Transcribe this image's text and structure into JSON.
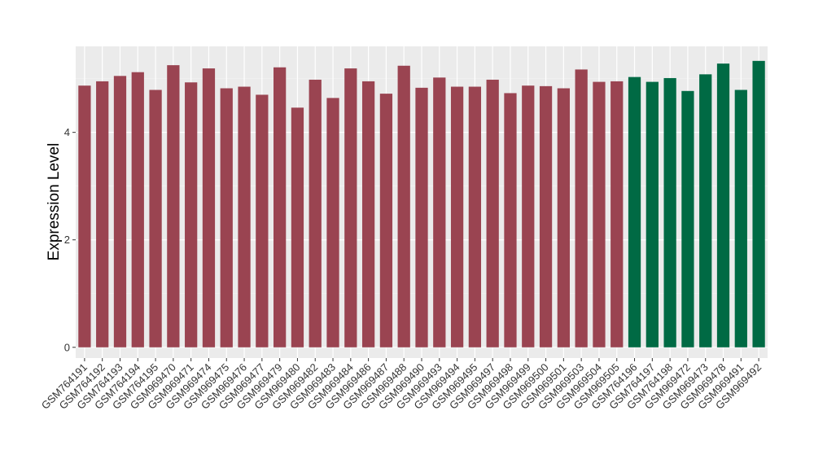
{
  "chart_data": {
    "type": "bar",
    "title": "",
    "xlabel": "",
    "ylabel": "Expression Level",
    "ylim": [
      -0.2,
      5.6
    ],
    "yticks": [
      0,
      2,
      4
    ],
    "grid": true,
    "legend": "none",
    "background": "#ebebeb",
    "colors": {
      "group_a": "#9a4451",
      "group_b": "#006a44"
    },
    "categories": [
      "GSM764191",
      "GSM764192",
      "GSM764193",
      "GSM764194",
      "GSM764195",
      "GSM969470",
      "GSM969471",
      "GSM969474",
      "GSM969475",
      "GSM969476",
      "GSM969477",
      "GSM969479",
      "GSM969480",
      "GSM969482",
      "GSM969483",
      "GSM969484",
      "GSM969486",
      "GSM969487",
      "GSM969488",
      "GSM969490",
      "GSM969493",
      "GSM969494",
      "GSM969495",
      "GSM969497",
      "GSM969498",
      "GSM969499",
      "GSM969500",
      "GSM969501",
      "GSM969503",
      "GSM969504",
      "GSM969505",
      "GSM764196",
      "GSM764197",
      "GSM764198",
      "GSM969472",
      "GSM969473",
      "GSM969478",
      "GSM969491",
      "GSM969492"
    ],
    "values": [
      4.87,
      4.95,
      5.05,
      5.12,
      4.79,
      5.25,
      4.93,
      5.19,
      4.82,
      4.85,
      4.7,
      5.21,
      4.46,
      4.98,
      4.64,
      5.19,
      4.95,
      4.72,
      5.24,
      4.83,
      5.02,
      4.85,
      4.85,
      4.98,
      4.73,
      4.87,
      4.86,
      4.82,
      5.17,
      4.94,
      4.95,
      5.03,
      4.94,
      5.01,
      4.77,
      5.08,
      5.28,
      4.79,
      5.33
    ],
    "groups": [
      "a",
      "a",
      "a",
      "a",
      "a",
      "a",
      "a",
      "a",
      "a",
      "a",
      "a",
      "a",
      "a",
      "a",
      "a",
      "a",
      "a",
      "a",
      "a",
      "a",
      "a",
      "a",
      "a",
      "a",
      "a",
      "a",
      "a",
      "a",
      "a",
      "a",
      "a",
      "b",
      "b",
      "b",
      "b",
      "b",
      "b",
      "b",
      "b"
    ]
  }
}
